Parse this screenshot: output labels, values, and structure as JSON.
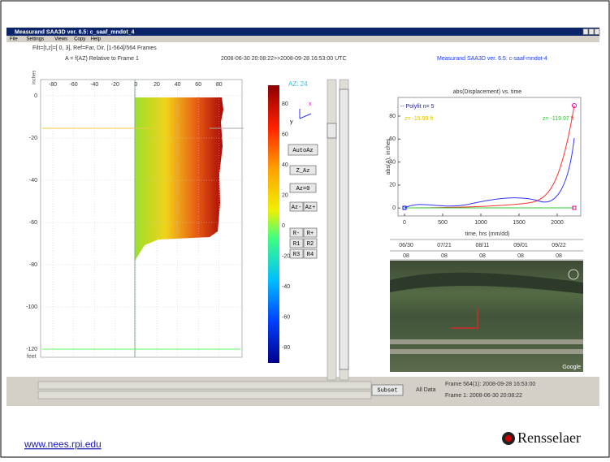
{
  "window": {
    "title": "Measurand SAA3D ver. 6.5: c_saaf_mndot_4",
    "menu": [
      "File",
      "Settings",
      "Views",
      "Copy",
      "Help"
    ]
  },
  "header": {
    "filter": "Filt=[t,z]=[ 0, 3],  Ref=Far, Dir,  [1-564]/564 Frames",
    "plot_title": "A = f(AZ) Relative to Frame 1",
    "time_range": "2008-06-30 20:08:22>>2008-09-28 16:53:00 UTC",
    "app_label": "Measurand SAA3D ver. 6.5:  c-saaf-mndot-4"
  },
  "profile_plot": {
    "y_label": "inches",
    "y_unit": "feet",
    "x_ticks": [
      "-80",
      "-60",
      "-40",
      "-20",
      "0",
      "20",
      "40",
      "60",
      "80"
    ],
    "y_ticks": [
      "0",
      "-20",
      "-40",
      "-60",
      "-80",
      "-100",
      "-120"
    ]
  },
  "colorbar": {
    "az": "AZ: 24",
    "axis_x": "x",
    "axis_y": "y",
    "ticks": [
      "80",
      "60",
      "40",
      "20",
      "0",
      "-20",
      "-40",
      "-60",
      "-80"
    ]
  },
  "buttons": [
    "AutoAz",
    "Z_Az",
    "Az=0",
    "Az-",
    "Az+",
    "R-",
    "R+",
    "R1",
    "R2",
    "R3",
    "R4"
  ],
  "time_plot": {
    "title": "abs(Displacement) vs. time",
    "legend": "-- Polyfit n= 5",
    "annotations": [
      "z= -15.99 ft",
      "z= -119.97 ft"
    ],
    "y_label": "abs(A), inches",
    "x_label": "time, hrs (mm/dd)",
    "y_ticks": [
      "80",
      "60",
      "40",
      "20",
      "0"
    ],
    "x_ticks": [
      "0",
      "500",
      "1000",
      "1500",
      "2000"
    ],
    "dates": [
      [
        "06/30",
        "08"
      ],
      [
        "07/21",
        "08"
      ],
      [
        "08/11",
        "08"
      ],
      [
        "09/01",
        "08"
      ],
      [
        "09/22",
        "08"
      ]
    ]
  },
  "map": {
    "attribution": "Google"
  },
  "controls": {
    "subset": "Subset",
    "all_data": "All Data",
    "frame_last": "Frame 564(1): 2008-09-28 16:53:00",
    "frame_first": "Frame 1: 2008-06-30 20:08:22"
  },
  "footer": {
    "link": "www.nees.rpi.edu",
    "logo": "Rensselaer"
  }
}
